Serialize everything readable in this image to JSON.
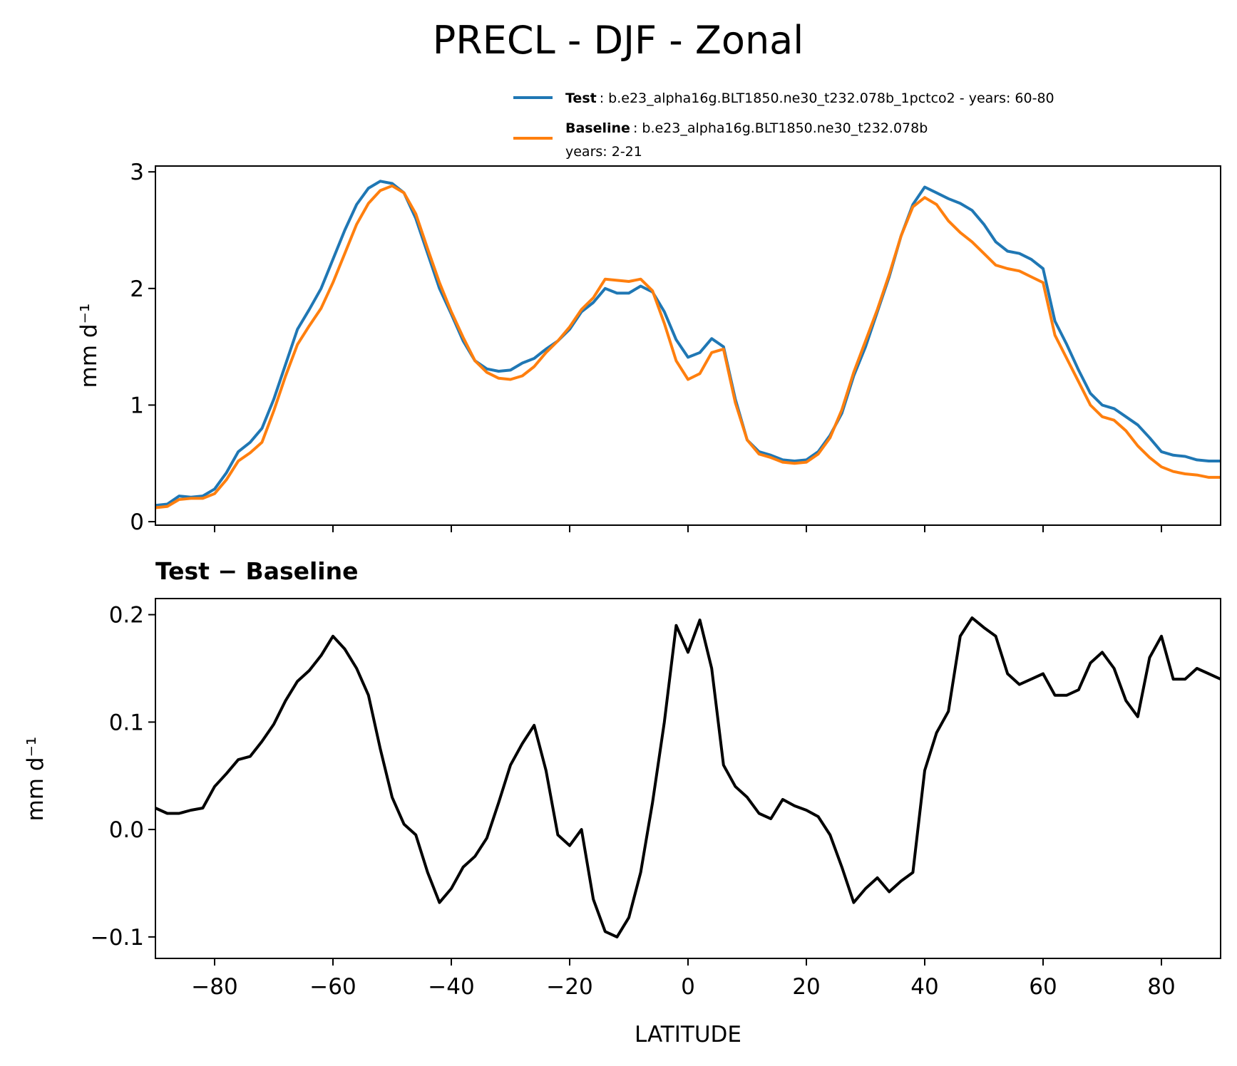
{
  "title": "PRECL - DJF - Zonal",
  "legend": [
    {
      "bold": "Test",
      "text": ": b.e23_alpha16g.BLT1850.ne30_t232.078b_1pctco2 - years: 60-80",
      "line2": "",
      "color": "#1f77b4"
    },
    {
      "bold": "Baseline",
      "text": ": b.e23_alpha16g.BLT1850.ne30_t232.078b",
      "line2": "years: 2-21",
      "color": "#ff7f0e"
    }
  ],
  "chart_data": [
    {
      "type": "line",
      "ylabel": "mm d⁻¹",
      "xlim": [
        -90,
        90
      ],
      "ylim": [
        -0.03,
        3.05
      ],
      "yticks": [
        "0",
        "1",
        "2",
        "3"
      ],
      "ytick_values": [
        0,
        1,
        2,
        3
      ],
      "xticks": [
        -80,
        -60,
        -40,
        -20,
        0,
        20,
        40,
        60,
        80
      ],
      "grid": false,
      "legend_position": "above-right",
      "series": [
        {
          "name": "Test",
          "color": "#1f77b4",
          "x": [
            -90,
            -88,
            -86,
            -84,
            -82,
            -80,
            -78,
            -76,
            -74,
            -72,
            -70,
            -68,
            -66,
            -64,
            -62,
            -60,
            -58,
            -56,
            -54,
            -52,
            -50,
            -48,
            -46,
            -44,
            -42,
            -40,
            -38,
            -36,
            -34,
            -32,
            -30,
            -28,
            -26,
            -24,
            -22,
            -20,
            -18,
            -16,
            -14,
            -12,
            -10,
            -8,
            -6,
            -4,
            -2,
            0,
            2,
            4,
            6,
            8,
            10,
            12,
            14,
            16,
            18,
            20,
            22,
            24,
            26,
            28,
            30,
            32,
            34,
            36,
            38,
            40,
            42,
            44,
            46,
            48,
            50,
            52,
            54,
            56,
            58,
            60,
            62,
            64,
            66,
            68,
            70,
            72,
            74,
            76,
            78,
            80,
            82,
            84,
            86,
            88,
            90
          ],
          "y": [
            0.14,
            0.15,
            0.22,
            0.21,
            0.22,
            0.28,
            0.42,
            0.6,
            0.68,
            0.8,
            1.05,
            1.35,
            1.65,
            1.82,
            2.0,
            2.25,
            2.5,
            2.72,
            2.86,
            2.92,
            2.9,
            2.82,
            2.6,
            2.3,
            2.0,
            1.78,
            1.55,
            1.38,
            1.31,
            1.29,
            1.3,
            1.36,
            1.4,
            1.48,
            1.55,
            1.65,
            1.8,
            1.88,
            2.0,
            1.96,
            1.96,
            2.02,
            1.97,
            1.8,
            1.56,
            1.41,
            1.45,
            1.57,
            1.5,
            1.05,
            0.7,
            0.6,
            0.57,
            0.53,
            0.52,
            0.53,
            0.6,
            0.74,
            0.93,
            1.25,
            1.5,
            1.8,
            2.1,
            2.45,
            2.72,
            2.87,
            2.82,
            2.77,
            2.73,
            2.67,
            2.55,
            2.4,
            2.32,
            2.3,
            2.25,
            2.17,
            1.72,
            1.52,
            1.3,
            1.1,
            1.0,
            0.97,
            0.9,
            0.83,
            0.72,
            0.6,
            0.57,
            0.56,
            0.53,
            0.52,
            0.52
          ]
        },
        {
          "name": "Baseline",
          "color": "#ff7f0e",
          "x": [
            -90,
            -88,
            -86,
            -84,
            -82,
            -80,
            -78,
            -76,
            -74,
            -72,
            -70,
            -68,
            -66,
            -64,
            -62,
            -60,
            -58,
            -56,
            -54,
            -52,
            -50,
            -48,
            -46,
            -44,
            -42,
            -40,
            -38,
            -36,
            -34,
            -32,
            -30,
            -28,
            -26,
            -24,
            -22,
            -20,
            -18,
            -16,
            -14,
            -12,
            -10,
            -8,
            -6,
            -4,
            -2,
            0,
            2,
            4,
            6,
            8,
            10,
            12,
            14,
            16,
            18,
            20,
            22,
            24,
            26,
            28,
            30,
            32,
            34,
            36,
            38,
            40,
            42,
            44,
            46,
            48,
            50,
            52,
            54,
            56,
            58,
            60,
            62,
            64,
            66,
            68,
            70,
            72,
            74,
            76,
            78,
            80,
            82,
            84,
            86,
            88,
            90
          ],
          "y": [
            0.12,
            0.13,
            0.19,
            0.2,
            0.2,
            0.24,
            0.36,
            0.52,
            0.59,
            0.68,
            0.95,
            1.25,
            1.52,
            1.68,
            1.83,
            2.05,
            2.3,
            2.55,
            2.73,
            2.84,
            2.88,
            2.82,
            2.64,
            2.34,
            2.05,
            1.8,
            1.58,
            1.38,
            1.28,
            1.23,
            1.22,
            1.25,
            1.33,
            1.45,
            1.55,
            1.67,
            1.82,
            1.92,
            2.08,
            2.07,
            2.06,
            2.08,
            1.98,
            1.7,
            1.38,
            1.22,
            1.27,
            1.45,
            1.48,
            1.02,
            0.7,
            0.58,
            0.55,
            0.51,
            0.5,
            0.51,
            0.58,
            0.72,
            0.96,
            1.28,
            1.55,
            1.82,
            2.12,
            2.45,
            2.7,
            2.78,
            2.72,
            2.58,
            2.48,
            2.4,
            2.3,
            2.2,
            2.17,
            2.15,
            2.1,
            2.05,
            1.6,
            1.4,
            1.2,
            1.0,
            0.9,
            0.87,
            0.78,
            0.65,
            0.55,
            0.47,
            0.43,
            0.41,
            0.4,
            0.38,
            0.38
          ]
        }
      ]
    },
    {
      "type": "line",
      "title": "Test − Baseline",
      "xlabel": "LATITUDE",
      "ylabel": "mm d⁻¹",
      "xlim": [
        -90,
        90
      ],
      "ylim": [
        -0.12,
        0.215
      ],
      "yticks": [
        "−0.1",
        "0.0",
        "0.1",
        "0.2"
      ],
      "ytick_values": [
        -0.1,
        0.0,
        0.1,
        0.2
      ],
      "xticks": [
        -80,
        -60,
        -40,
        -20,
        0,
        20,
        40,
        60,
        80
      ],
      "xtick_labels": [
        "−80",
        "−60",
        "−40",
        "−20",
        "0",
        "20",
        "40",
        "60",
        "80"
      ],
      "grid": false,
      "series": [
        {
          "color": "#000000",
          "x": [
            -90,
            -88,
            -86,
            -84,
            -82,
            -80,
            -78,
            -76,
            -74,
            -72,
            -70,
            -68,
            -66,
            -64,
            -62,
            -60,
            -58,
            -56,
            -54,
            -52,
            -50,
            -48,
            -46,
            -44,
            -42,
            -40,
            -38,
            -36,
            -34,
            -32,
            -30,
            -28,
            -26,
            -24,
            -22,
            -20,
            -18,
            -16,
            -14,
            -12,
            -10,
            -8,
            -6,
            -4,
            -2,
            0,
            2,
            4,
            6,
            8,
            10,
            12,
            14,
            16,
            18,
            20,
            22,
            24,
            26,
            28,
            30,
            32,
            34,
            36,
            38,
            40,
            42,
            44,
            46,
            48,
            50,
            52,
            54,
            56,
            58,
            60,
            62,
            64,
            66,
            68,
            70,
            72,
            74,
            76,
            78,
            80,
            82,
            84,
            86,
            88,
            90
          ],
          "y": [
            0.02,
            0.015,
            0.015,
            0.018,
            0.02,
            0.04,
            0.052,
            0.065,
            0.068,
            0.082,
            0.098,
            0.12,
            0.138,
            0.148,
            0.162,
            0.18,
            0.168,
            0.15,
            0.125,
            0.075,
            0.03,
            0.005,
            -0.005,
            -0.04,
            -0.068,
            -0.055,
            -0.035,
            -0.025,
            -0.008,
            0.025,
            0.06,
            0.08,
            0.097,
            0.055,
            -0.005,
            -0.015,
            0.0,
            -0.065,
            -0.095,
            -0.1,
            -0.082,
            -0.04,
            0.025,
            0.1,
            0.19,
            0.165,
            0.195,
            0.15,
            0.06,
            0.04,
            0.03,
            0.015,
            0.01,
            0.028,
            0.022,
            0.018,
            0.012,
            -0.005,
            -0.035,
            -0.068,
            -0.055,
            -0.045,
            -0.058,
            -0.048,
            -0.04,
            0.055,
            0.09,
            0.11,
            0.18,
            0.197,
            0.188,
            0.18,
            0.145,
            0.135,
            0.14,
            0.145,
            0.125,
            0.125,
            0.13,
            0.155,
            0.165,
            0.15,
            0.12,
            0.105,
            0.16,
            0.18,
            0.14,
            0.14,
            0.15,
            0.145,
            0.14
          ]
        }
      ]
    }
  ]
}
